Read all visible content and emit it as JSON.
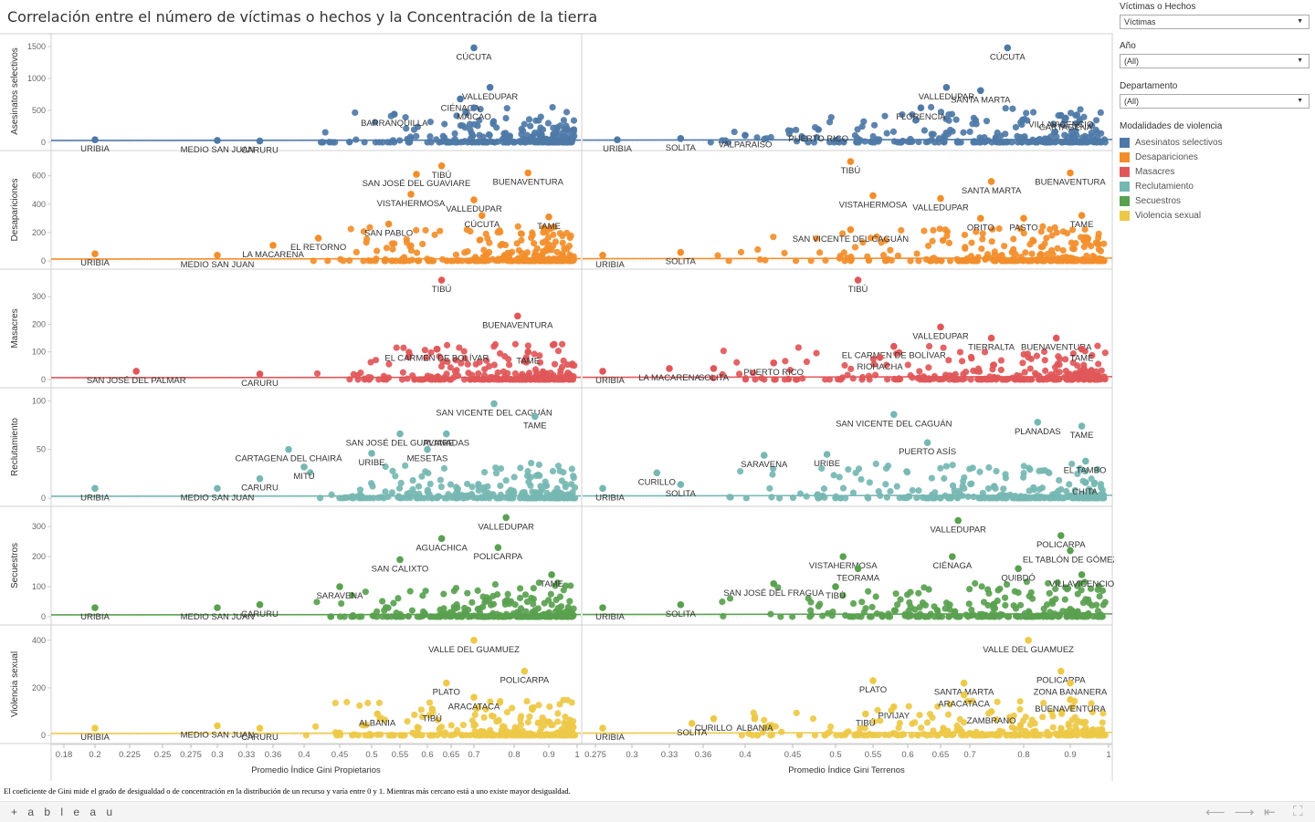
{
  "title": "Correlación entre el número de víctimas o hechos y la Concentración de la tierra",
  "filters": [
    {
      "label": "Víctimas o Hechos",
      "value": "Víctimas"
    },
    {
      "label": "Año",
      "value": "(All)"
    },
    {
      "label": "Departamento",
      "value": "(All)"
    }
  ],
  "legend": {
    "title": "Modalidades de violencia",
    "items": [
      {
        "label": "Asesinatos selectivos",
        "color": "#4e79a7"
      },
      {
        "label": "Desapariciones",
        "color": "#f28e2b"
      },
      {
        "label": "Masacres",
        "color": "#e15759"
      },
      {
        "label": "Reclutamiento",
        "color": "#76b7b2"
      },
      {
        "label": "Secuestros",
        "color": "#59a14f"
      },
      {
        "label": "Violencia sexual",
        "color": "#edc948"
      }
    ]
  },
  "caption": "El coeficiente de Gini mide el grado de desigualdad o de concentración en la distribución de un recurso y varía entre 0 y 1. Mientras más cercano está a uno existe mayor desigualdad.",
  "footer": {
    "logo": "+ a b l e a u",
    "icons": [
      "back-icon",
      "forward-icon",
      "first-icon",
      "fullscreen-icon"
    ],
    "glyphs": [
      "⟵",
      "⟶",
      "⇤",
      "⛶"
    ]
  },
  "chart_data": {
    "type": "scatter",
    "xlabel_left": "Promedio Índice Gini Propietarios",
    "xlabel_right": "Promedio Índice Gini Terrenos",
    "x_ticks_left": [
      0.18,
      0.2,
      0.225,
      0.25,
      0.275,
      0.3,
      0.33,
      0.36,
      0.4,
      0.45,
      0.5,
      0.55,
      0.6,
      0.65,
      0.7,
      0.8,
      0.9,
      1
    ],
    "x_ticks_right": [
      0.275,
      0.3,
      0.33,
      0.36,
      0.4,
      0.45,
      0.5,
      0.55,
      0.6,
      0.65,
      0.7,
      0.8,
      0.9,
      1
    ],
    "rows": [
      {
        "name": "Asesinatos selectivos",
        "color": "#4e79a7",
        "ymax": 1600,
        "ticks": [
          0,
          500,
          1000,
          1500
        ],
        "left_labels": [
          {
            "text": "URIBIA",
            "x": 0.2,
            "y": 40
          },
          {
            "text": "MEDIO SAN JUAN",
            "x": 0.3,
            "y": 30
          },
          {
            "text": "CARURU",
            "x": 0.345,
            "y": 20
          },
          {
            "text": "BARRANQUILLA",
            "x": 0.54,
            "y": 440
          },
          {
            "text": "CIÉNAGA",
            "x": 0.67,
            "y": 680
          },
          {
            "text": "CÚCUTA",
            "x": 0.7,
            "y": 1480
          },
          {
            "text": "VALLEDUPAR",
            "x": 0.74,
            "y": 860
          },
          {
            "text": "MAICAO",
            "x": 0.7,
            "y": 540
          }
        ],
        "right_labels": [
          {
            "text": "URIBIA",
            "x": 0.29,
            "y": 40
          },
          {
            "text": "SOLITA",
            "x": 0.34,
            "y": 60
          },
          {
            "text": "VALPARAÍSO",
            "x": 0.4,
            "y": 110
          },
          {
            "text": "PUERTO RICO",
            "x": 0.48,
            "y": 200
          },
          {
            "text": "FLORENCIA",
            "x": 0.62,
            "y": 540
          },
          {
            "text": "VALLEDUPAR",
            "x": 0.66,
            "y": 860
          },
          {
            "text": "CÚCUTA",
            "x": 0.77,
            "y": 1480
          },
          {
            "text": "SANTA MARTA",
            "x": 0.72,
            "y": 810
          },
          {
            "text": "VILLAVICENCIO",
            "x": 0.88,
            "y": 420
          },
          {
            "text": "CARTAGENA",
            "x": 0.89,
            "y": 380
          }
        ]
      },
      {
        "name": "Desapariciones",
        "color": "#f28e2b",
        "ymax": 720,
        "ticks": [
          0,
          200,
          400,
          600
        ],
        "left_labels": [
          {
            "text": "URIBIA",
            "x": 0.2,
            "y": 50
          },
          {
            "text": "MEDIO SAN JUAN",
            "x": 0.3,
            "y": 40
          },
          {
            "text": "LA MACARENA",
            "x": 0.36,
            "y": 110
          },
          {
            "text": "EL RETORNO",
            "x": 0.42,
            "y": 160
          },
          {
            "text": "SAN PABLO",
            "x": 0.53,
            "y": 260
          },
          {
            "text": "VISTAHERMOSA",
            "x": 0.57,
            "y": 470
          },
          {
            "text": "SAN JOSÉ DEL GUAVIARE",
            "x": 0.58,
            "y": 610
          },
          {
            "text": "TIBÚ",
            "x": 0.63,
            "y": 670
          },
          {
            "text": "VALLEDUPAR",
            "x": 0.7,
            "y": 430
          },
          {
            "text": "CÚCUTA",
            "x": 0.72,
            "y": 320
          },
          {
            "text": "BUENAVENTURA",
            "x": 0.84,
            "y": 620
          },
          {
            "text": "TAME",
            "x": 0.9,
            "y": 310
          }
        ],
        "right_labels": [
          {
            "text": "URIBIA",
            "x": 0.28,
            "y": 40
          },
          {
            "text": "SOLITA",
            "x": 0.34,
            "y": 60
          },
          {
            "text": "SAN VICENTE DEL CAGUÁN",
            "x": 0.52,
            "y": 220
          },
          {
            "text": "TIBÚ",
            "x": 0.52,
            "y": 700
          },
          {
            "text": "VISTAHERMOSA",
            "x": 0.55,
            "y": 460
          },
          {
            "text": "VALLEDUPAR",
            "x": 0.65,
            "y": 440
          },
          {
            "text": "SANTA MARTA",
            "x": 0.74,
            "y": 560
          },
          {
            "text": "BUENAVENTURA",
            "x": 0.9,
            "y": 620
          },
          {
            "text": "ORITO",
            "x": 0.72,
            "y": 300
          },
          {
            "text": "PASTO",
            "x": 0.8,
            "y": 300
          },
          {
            "text": "TAME",
            "x": 0.93,
            "y": 320
          }
        ]
      },
      {
        "name": "Masacres",
        "color": "#e15759",
        "ymax": 370,
        "ticks": [
          0,
          100,
          200,
          300
        ],
        "left_labels": [
          {
            "text": "SAN JOSÉ DEL PALMAR",
            "x": 0.23,
            "y": 30
          },
          {
            "text": "CARURU",
            "x": 0.345,
            "y": 20
          },
          {
            "text": "TIBÚ",
            "x": 0.63,
            "y": 360
          },
          {
            "text": "EL CARMEN DE BOLÍVAR",
            "x": 0.62,
            "y": 110
          },
          {
            "text": "BUENAVENTURA",
            "x": 0.81,
            "y": 230
          },
          {
            "text": "TAME",
            "x": 0.84,
            "y": 100
          }
        ],
        "right_labels": [
          {
            "text": "URIBIA",
            "x": 0.28,
            "y": 30
          },
          {
            "text": "LA MACARENA",
            "x": 0.33,
            "y": 40
          },
          {
            "text": "SOLITA",
            "x": 0.37,
            "y": 40
          },
          {
            "text": "PUERTO RICO",
            "x": 0.43,
            "y": 60
          },
          {
            "text": "TIBÚ",
            "x": 0.53,
            "y": 360
          },
          {
            "text": "EL CARMEN DE BOLÍVAR",
            "x": 0.58,
            "y": 120
          },
          {
            "text": "RIOHACHA",
            "x": 0.56,
            "y": 80
          },
          {
            "text": "VALLEDUPAR",
            "x": 0.65,
            "y": 190
          },
          {
            "text": "TIERRALTA",
            "x": 0.74,
            "y": 150
          },
          {
            "text": "BUENAVENTURA",
            "x": 0.87,
            "y": 150
          },
          {
            "text": "TAME",
            "x": 0.93,
            "y": 110
          }
        ]
      },
      {
        "name": "Reclutamiento",
        "color": "#76b7b2",
        "ymax": 105,
        "ticks": [
          0,
          50,
          100
        ],
        "left_labels": [
          {
            "text": "URIBIA",
            "x": 0.2,
            "y": 10
          },
          {
            "text": "MEDIO SAN JUAN",
            "x": 0.3,
            "y": 10
          },
          {
            "text": "CARURU",
            "x": 0.345,
            "y": 20
          },
          {
            "text": "MITÚ",
            "x": 0.4,
            "y": 32
          },
          {
            "text": "CARTAGENA DEL CHAIRÁ",
            "x": 0.38,
            "y": 50
          },
          {
            "text": "URIBE",
            "x": 0.5,
            "y": 46
          },
          {
            "text": "SAN JOSÉ DEL GUAVIARE",
            "x": 0.55,
            "y": 66
          },
          {
            "text": "MESETAS",
            "x": 0.6,
            "y": 50
          },
          {
            "text": "PLANADAS",
            "x": 0.64,
            "y": 66
          },
          {
            "text": "SAN VICENTE DEL CAGUÁN",
            "x": 0.75,
            "y": 97
          },
          {
            "text": "TAME",
            "x": 0.86,
            "y": 84
          }
        ],
        "right_labels": [
          {
            "text": "URIBIA",
            "x": 0.28,
            "y": 10
          },
          {
            "text": "SOLITA",
            "x": 0.34,
            "y": 14
          },
          {
            "text": "CURILLO",
            "x": 0.32,
            "y": 26
          },
          {
            "text": "SARAVENA",
            "x": 0.42,
            "y": 44
          },
          {
            "text": "URIBE",
            "x": 0.49,
            "y": 45
          },
          {
            "text": "SAN VICENTE DEL CAGUÁN",
            "x": 0.58,
            "y": 86
          },
          {
            "text": "PUERTO ASÍS",
            "x": 0.63,
            "y": 57
          },
          {
            "text": "PLANADAS",
            "x": 0.83,
            "y": 78
          },
          {
            "text": "TAME",
            "x": 0.93,
            "y": 74
          },
          {
            "text": "EL TAMBO",
            "x": 0.94,
            "y": 38
          },
          {
            "text": "CHITA",
            "x": 0.94,
            "y": 16
          }
        ]
      },
      {
        "name": "Secuestros",
        "color": "#59a14f",
        "ymax": 340,
        "ticks": [
          0,
          100,
          200,
          300
        ],
        "left_labels": [
          {
            "text": "URIBIA",
            "x": 0.2,
            "y": 30
          },
          {
            "text": "MEDIO SAN JUAN",
            "x": 0.3,
            "y": 30
          },
          {
            "text": "CARURU",
            "x": 0.345,
            "y": 40
          },
          {
            "text": "SARAVENA",
            "x": 0.45,
            "y": 100
          },
          {
            "text": "SAN CALIXTO",
            "x": 0.55,
            "y": 190
          },
          {
            "text": "AGUACHICA",
            "x": 0.63,
            "y": 260
          },
          {
            "text": "VALLEDUPAR",
            "x": 0.78,
            "y": 330
          },
          {
            "text": "POLICARPA",
            "x": 0.76,
            "y": 230
          },
          {
            "text": "TAME",
            "x": 0.91,
            "y": 140
          }
        ],
        "right_labels": [
          {
            "text": "URIBIA",
            "x": 0.28,
            "y": 30
          },
          {
            "text": "SOLITA",
            "x": 0.34,
            "y": 40
          },
          {
            "text": "SAN JOSÉ DEL FRAGUA",
            "x": 0.43,
            "y": 110
          },
          {
            "text": "TIBÚ",
            "x": 0.5,
            "y": 100
          },
          {
            "text": "VISTAHERMOSA",
            "x": 0.51,
            "y": 200
          },
          {
            "text": "TEORAMA",
            "x": 0.53,
            "y": 160
          },
          {
            "text": "VALLEDUPAR",
            "x": 0.68,
            "y": 320
          },
          {
            "text": "CIÉNAGA",
            "x": 0.67,
            "y": 200
          },
          {
            "text": "QUIBDÓ",
            "x": 0.79,
            "y": 160
          },
          {
            "text": "POLICARPA",
            "x": 0.88,
            "y": 270
          },
          {
            "text": "EL TABLÓN DE GÓMEZ",
            "x": 0.9,
            "y": 220
          },
          {
            "text": "VILLAVICENCIO",
            "x": 0.93,
            "y": 140
          }
        ]
      },
      {
        "name": "Violencia sexual",
        "color": "#edc948",
        "ymax": 430,
        "ticks": [
          0,
          200,
          400
        ],
        "left_labels": [
          {
            "text": "URIBIA",
            "x": 0.2,
            "y": 30
          },
          {
            "text": "MEDIO SAN JUAN",
            "x": 0.3,
            "y": 40
          },
          {
            "text": "CARURU",
            "x": 0.345,
            "y": 30
          },
          {
            "text": "ALBANIA",
            "x": 0.51,
            "y": 90
          },
          {
            "text": "TIBÚ",
            "x": 0.61,
            "y": 110
          },
          {
            "text": "PLATO",
            "x": 0.64,
            "y": 220
          },
          {
            "text": "ARACATACA",
            "x": 0.7,
            "y": 160
          },
          {
            "text": "VALLE DEL GUAMUEZ",
            "x": 0.7,
            "y": 400
          },
          {
            "text": "POLICARPA",
            "x": 0.83,
            "y": 270
          }
        ],
        "right_labels": [
          {
            "text": "URIBIA",
            "x": 0.28,
            "y": 30
          },
          {
            "text": "SOLITA",
            "x": 0.35,
            "y": 50
          },
          {
            "text": "CURILLO",
            "x": 0.37,
            "y": 70
          },
          {
            "text": "ALBANIA",
            "x": 0.41,
            "y": 70
          },
          {
            "text": "PLATO",
            "x": 0.55,
            "y": 230
          },
          {
            "text": "TIBÚ",
            "x": 0.54,
            "y": 90
          },
          {
            "text": "PIVIJAY",
            "x": 0.58,
            "y": 120
          },
          {
            "text": "SANTA MARTA",
            "x": 0.69,
            "y": 220
          },
          {
            "text": "ARACATACA",
            "x": 0.69,
            "y": 170
          },
          {
            "text": "ZAMBRANO",
            "x": 0.74,
            "y": 100
          },
          {
            "text": "VALLE DEL GUAMUEZ",
            "x": 0.81,
            "y": 400
          },
          {
            "text": "POLICARPA",
            "x": 0.88,
            "y": 270
          },
          {
            "text": "ZONA BANANERA",
            "x": 0.9,
            "y": 220
          },
          {
            "text": "BUENAVENTURA",
            "x": 0.9,
            "y": 150
          }
        ]
      }
    ]
  }
}
